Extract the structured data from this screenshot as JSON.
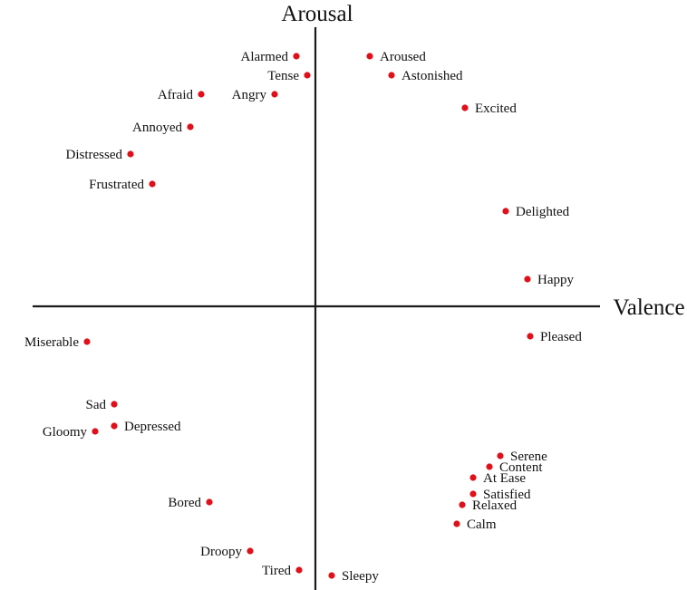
{
  "axes": {
    "y_label": "Arousal",
    "x_label": "Valence"
  },
  "colors": {
    "point": "#e0101a",
    "axis": "#1a1a1a",
    "text": "#111111"
  },
  "emotions": [
    {
      "label": "Alarmed",
      "valence": -0.07,
      "arousal": 0.92
    },
    {
      "label": "Tense",
      "valence": -0.03,
      "arousal": 0.85
    },
    {
      "label": "Aroused",
      "valence": 0.2,
      "arousal": 0.92
    },
    {
      "label": "Astonished",
      "valence": 0.28,
      "arousal": 0.85
    },
    {
      "label": "Afraid",
      "valence": -0.42,
      "arousal": 0.78
    },
    {
      "label": "Angry",
      "valence": -0.15,
      "arousal": 0.78
    },
    {
      "label": "Excited",
      "valence": 0.55,
      "arousal": 0.73
    },
    {
      "label": "Annoyed",
      "valence": -0.46,
      "arousal": 0.66
    },
    {
      "label": "Distressed",
      "valence": -0.68,
      "arousal": 0.56
    },
    {
      "label": "Frustrated",
      "valence": -0.6,
      "arousal": 0.45
    },
    {
      "label": "Delighted",
      "valence": 0.7,
      "arousal": 0.35
    },
    {
      "label": "Happy",
      "valence": 0.78,
      "arousal": 0.1
    },
    {
      "label": "Pleased",
      "valence": 0.79,
      "arousal": -0.11
    },
    {
      "label": "Miserable",
      "valence": -0.84,
      "arousal": -0.13
    },
    {
      "label": "Sad",
      "valence": -0.74,
      "arousal": -0.36
    },
    {
      "label": "Depressed",
      "valence": -0.74,
      "arousal": -0.44
    },
    {
      "label": "Gloomy",
      "valence": -0.81,
      "arousal": -0.46
    },
    {
      "label": "Serene",
      "valence": 0.68,
      "arousal": -0.55
    },
    {
      "label": "Content",
      "valence": 0.64,
      "arousal": -0.59
    },
    {
      "label": "At Ease",
      "valence": 0.58,
      "arousal": -0.63
    },
    {
      "label": "Satisfied",
      "valence": 0.58,
      "arousal": -0.69
    },
    {
      "label": "Relaxed",
      "valence": 0.54,
      "arousal": -0.73
    },
    {
      "label": "Calm",
      "valence": 0.52,
      "arousal": -0.8
    },
    {
      "label": "Bored",
      "valence": -0.39,
      "arousal": -0.72
    },
    {
      "label": "Droopy",
      "valence": -0.24,
      "arousal": -0.9
    },
    {
      "label": "Tired",
      "valence": -0.06,
      "arousal": -0.97
    },
    {
      "label": "Sleepy",
      "valence": 0.06,
      "arousal": -0.99
    }
  ]
}
